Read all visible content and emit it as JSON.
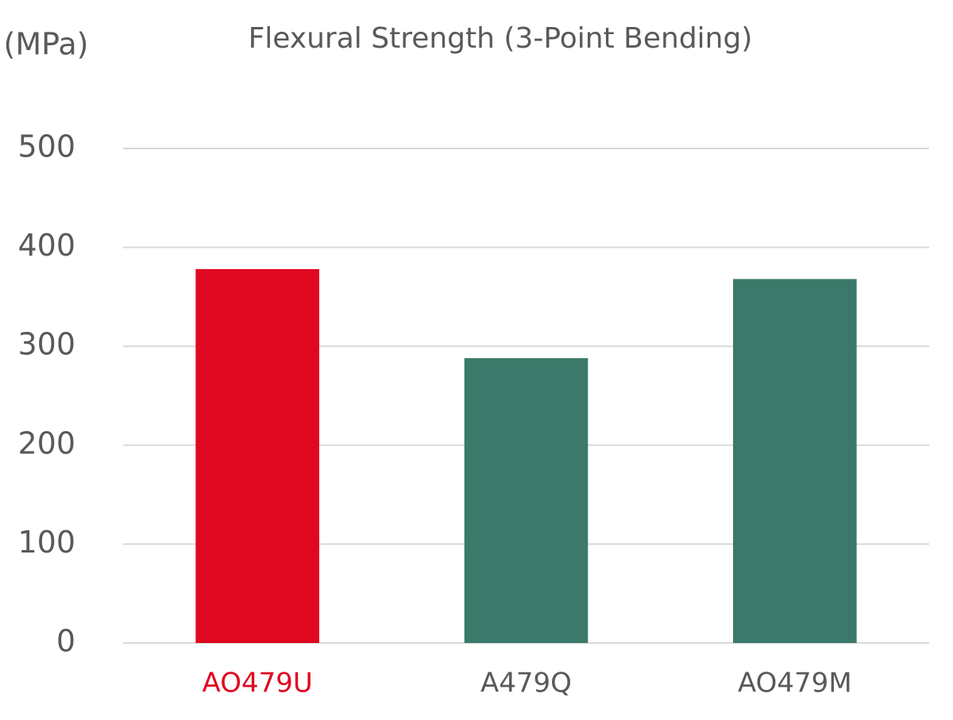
{
  "chart_data": {
    "type": "bar",
    "title": "Flexural Strength (3-Point Bending)",
    "y_label": "(MPa)",
    "categories": [
      "AO479U",
      "A479Q",
      "AO479M"
    ],
    "values": [
      378,
      288,
      368
    ],
    "colors": [
      "#e00721",
      "#3b7a6a",
      "#3b7a6a"
    ],
    "label_colors": [
      "#e00721",
      "#595959",
      "#595959"
    ],
    "ylim": [
      0,
      500
    ],
    "yticks": [
      0,
      100,
      200,
      300,
      400,
      500
    ],
    "grid": true
  }
}
